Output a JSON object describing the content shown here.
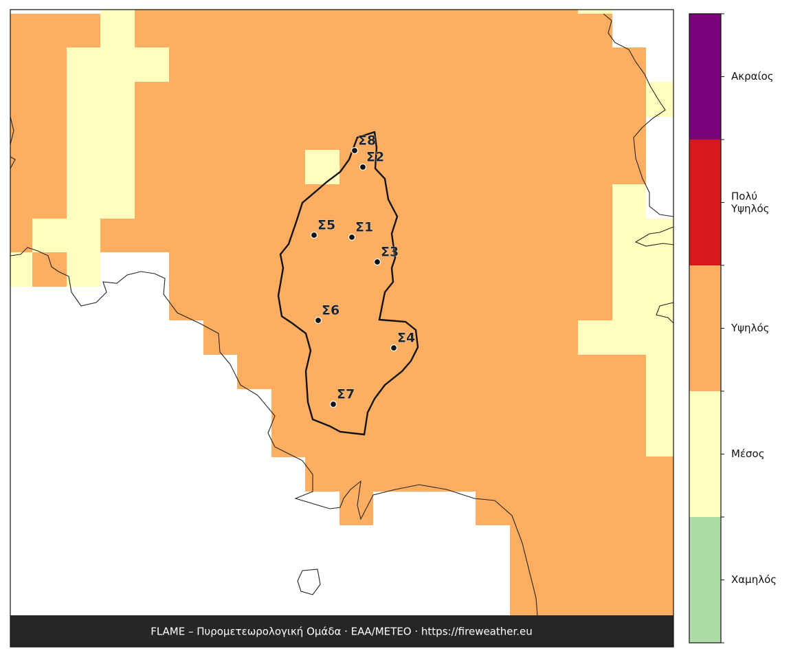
{
  "map": {
    "stations": [
      "Σ1",
      "Σ2",
      "Σ3",
      "Σ4",
      "Σ5",
      "Σ6",
      "Σ7",
      "Σ8"
    ],
    "legend": [
      {
        "label": "Ακραίος",
        "color": "#7a0177"
      },
      {
        "label": "Πολύ\nΥψηλός",
        "color": "#d7191c"
      },
      {
        "label": "Υψηλός",
        "color": "#fdae61"
      },
      {
        "label": "Μέσος",
        "color": "#ffffbf"
      },
      {
        "label": "Χαμηλός",
        "color": "#abdda4"
      }
    ],
    "footer": "FLAME – Πυρομετεωρολογική Ομάδα · ΕΑΑ/METEO · https://fireweather.eu"
  }
}
